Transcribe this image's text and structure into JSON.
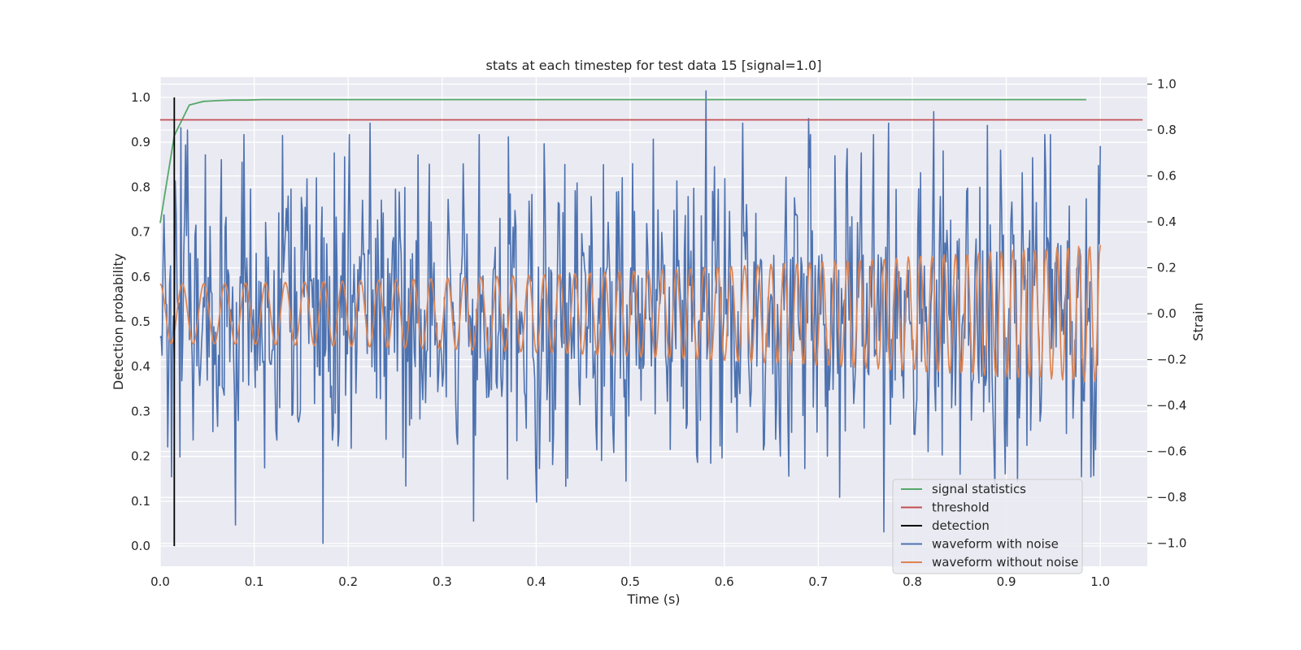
{
  "chart_data": {
    "type": "line",
    "title": "stats at each timestep for test data 15 [signal=1.0]",
    "xlabel": "Time (s)",
    "ylabel_left": "Detection probability",
    "ylabel_right": "Strain",
    "xlim": [
      0.0,
      1.05
    ],
    "ylim_left": [
      -0.045,
      1.045
    ],
    "ylim_right": [
      -1.1,
      1.03
    ],
    "x_ticks": [
      "0.0",
      "0.1",
      "0.2",
      "0.3",
      "0.4",
      "0.5",
      "0.6",
      "0.7",
      "0.8",
      "0.9",
      "1.0"
    ],
    "x_tick_values": [
      0.0,
      0.1,
      0.2,
      0.3,
      0.4,
      0.5,
      0.6,
      0.7,
      0.8,
      0.9,
      1.0
    ],
    "y_left_ticks": [
      "0.0",
      "0.1",
      "0.2",
      "0.3",
      "0.4",
      "0.5",
      "0.6",
      "0.7",
      "0.8",
      "0.9",
      "1.0"
    ],
    "y_left_tick_values": [
      0.0,
      0.1,
      0.2,
      0.3,
      0.4,
      0.5,
      0.6,
      0.7,
      0.8,
      0.9,
      1.0
    ],
    "y_right_ticks": [
      "−1.0",
      "−0.8",
      "−0.6",
      "−0.4",
      "−0.2",
      "0.0",
      "0.2",
      "0.4",
      "0.6",
      "0.8",
      "1.0"
    ],
    "y_right_tick_values": [
      -1.0,
      -0.8,
      -0.6,
      -0.4,
      -0.2,
      0.0,
      0.2,
      0.4,
      0.6,
      0.8,
      1.0
    ],
    "grid": true,
    "background": "#eaeaf2",
    "legend_position": "lower-right",
    "series": [
      {
        "name": "signal statistics",
        "axis": "left",
        "color": "#55a868",
        "x": [
          0.0,
          0.015,
          0.031,
          0.046,
          0.062,
          0.077,
          0.092,
          0.108,
          0.2,
          0.4,
          0.6,
          0.8,
          0.985
        ],
        "y": [
          0.72,
          0.915,
          0.983,
          0.991,
          0.993,
          0.994,
          0.994,
          0.995,
          0.995,
          0.995,
          0.995,
          0.995,
          0.995
        ]
      },
      {
        "name": "threshold",
        "axis": "left",
        "color": "#c44e52",
        "x": [
          0.0,
          1.045
        ],
        "y": [
          0.95,
          0.95
        ]
      },
      {
        "name": "detection",
        "axis": "left",
        "color": "#000000",
        "x": [
          0.015,
          0.015
        ],
        "y": [
          0.0,
          1.0
        ]
      },
      {
        "name": "waveform with noise",
        "axis": "right",
        "color": "#4c72b0",
        "type": "noise",
        "n_points": 1000,
        "x_range": [
          0.0,
          1.0
        ],
        "std": 0.29,
        "chirp": {
          "f0": 42,
          "f1": 88,
          "amp0": 0.13,
          "amp1": 0.28
        },
        "peaks": [
          [
            0.004,
            0.43
          ],
          [
            0.008,
            -0.58
          ],
          [
            0.012,
            -0.71
          ],
          [
            0.022,
            0.81
          ],
          [
            0.029,
            0.8
          ],
          [
            0.07,
            0.42
          ],
          [
            0.087,
            0.66
          ],
          [
            0.173,
            -1.0
          ],
          [
            0.185,
            0.7
          ],
          [
            0.201,
            0.78
          ],
          [
            0.223,
            0.83
          ],
          [
            0.26,
            0.55
          ],
          [
            0.37,
            0.77
          ],
          [
            0.4,
            -0.82
          ],
          [
            0.408,
            0.74
          ],
          [
            0.43,
            0.65
          ],
          [
            0.485,
            0.53
          ],
          [
            0.525,
            0.76
          ],
          [
            0.562,
            0.51
          ],
          [
            0.581,
            0.97
          ],
          [
            0.59,
            0.64
          ],
          [
            0.62,
            0.83
          ],
          [
            0.66,
            -0.62
          ],
          [
            0.69,
            0.85
          ],
          [
            0.71,
            -0.62
          ],
          [
            0.77,
            -0.95
          ],
          [
            0.775,
            0.83
          ],
          [
            0.823,
            0.88
          ],
          [
            0.88,
            0.82
          ],
          [
            0.947,
            0.78
          ],
          [
            0.98,
            -0.71
          ],
          [
            0.985,
            0.5
          ]
        ]
      },
      {
        "name": "waveform without noise",
        "axis": "right",
        "color": "#dd8452",
        "type": "chirp",
        "n_points": 1000,
        "x_range": [
          0.0,
          1.0
        ],
        "f0": 42,
        "f1": 88,
        "amp0": 0.13,
        "amp1": 0.3
      }
    ]
  }
}
